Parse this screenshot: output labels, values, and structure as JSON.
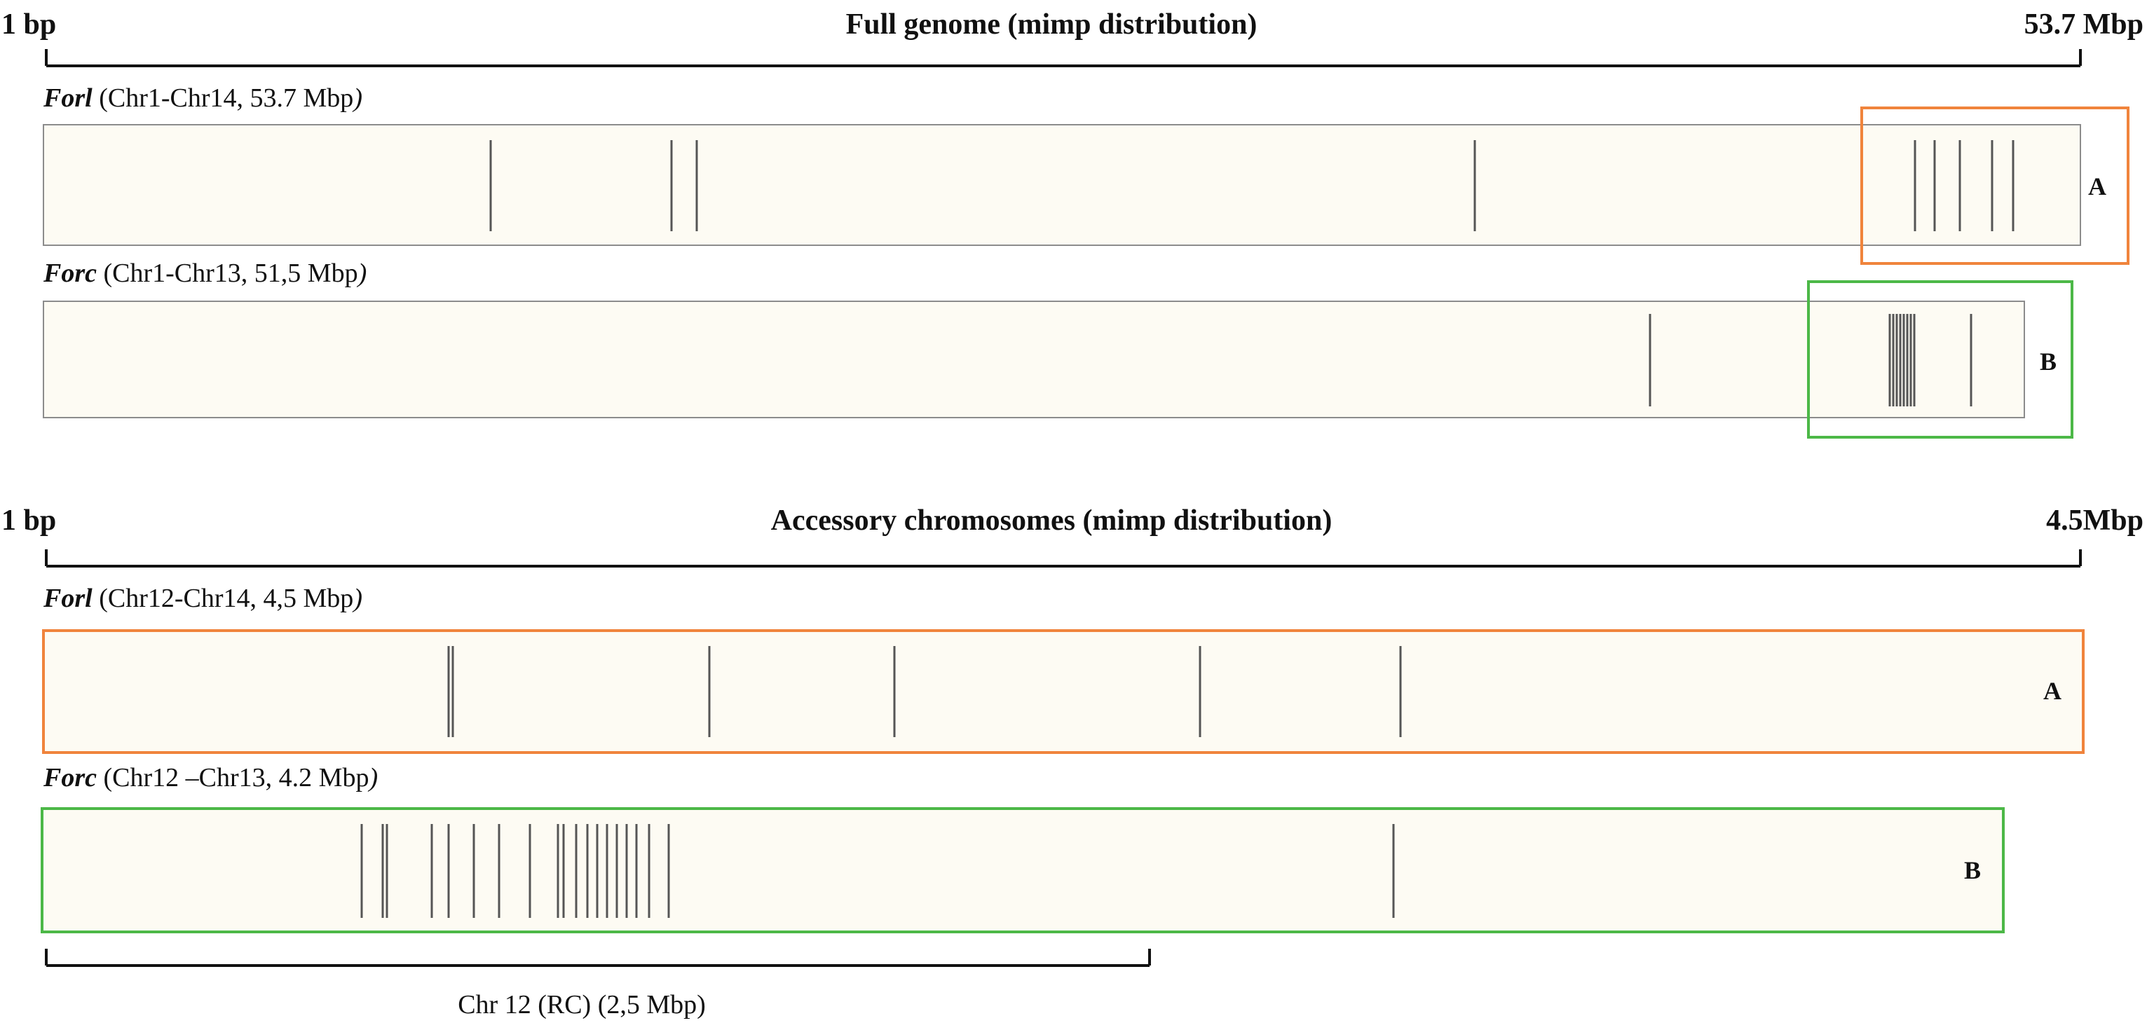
{
  "colors": {
    "A": "#f0843c",
    "B": "#4cb847",
    "track_fill": "#fdfbf3",
    "mark": "#555555"
  },
  "panels": [
    {
      "id": "full",
      "title": "Full genome (mimp distribution)",
      "scale_start": "1 bp",
      "scale_end": "53.7 Mbp",
      "tracks": [
        {
          "id": "full-forl",
          "species": "Forl",
          "range_open": " (Chr1-Chr14, 53.7 Mbp",
          "range_close": ")"
        },
        {
          "id": "full-forc",
          "species": "Forc",
          "range_open": " (Chr1-Chr13, 51,5 Mbp",
          "range_close": ")"
        }
      ],
      "highlights": [
        {
          "id": "full-hl-a",
          "label": "A"
        },
        {
          "id": "full-hl-b",
          "label": "B"
        }
      ]
    },
    {
      "id": "acc",
      "title": "Accessory chromosomes (mimp distribution)",
      "scale_start": "1 bp",
      "scale_end": "4.5Mbp",
      "tracks": [
        {
          "id": "acc-forl",
          "species": "Forl",
          "range_open": " (Chr12-Chr14, 4,5 Mbp",
          "range_close": ")",
          "tag": "A"
        },
        {
          "id": "acc-forc",
          "species": "Forc",
          "range_open": " (Chr12 –Chr13, 4.2 Mbp",
          "range_close": ")",
          "tag": "B"
        }
      ],
      "region_label": "Chr 12 (RC) (2,5 Mbp)"
    }
  ]
}
